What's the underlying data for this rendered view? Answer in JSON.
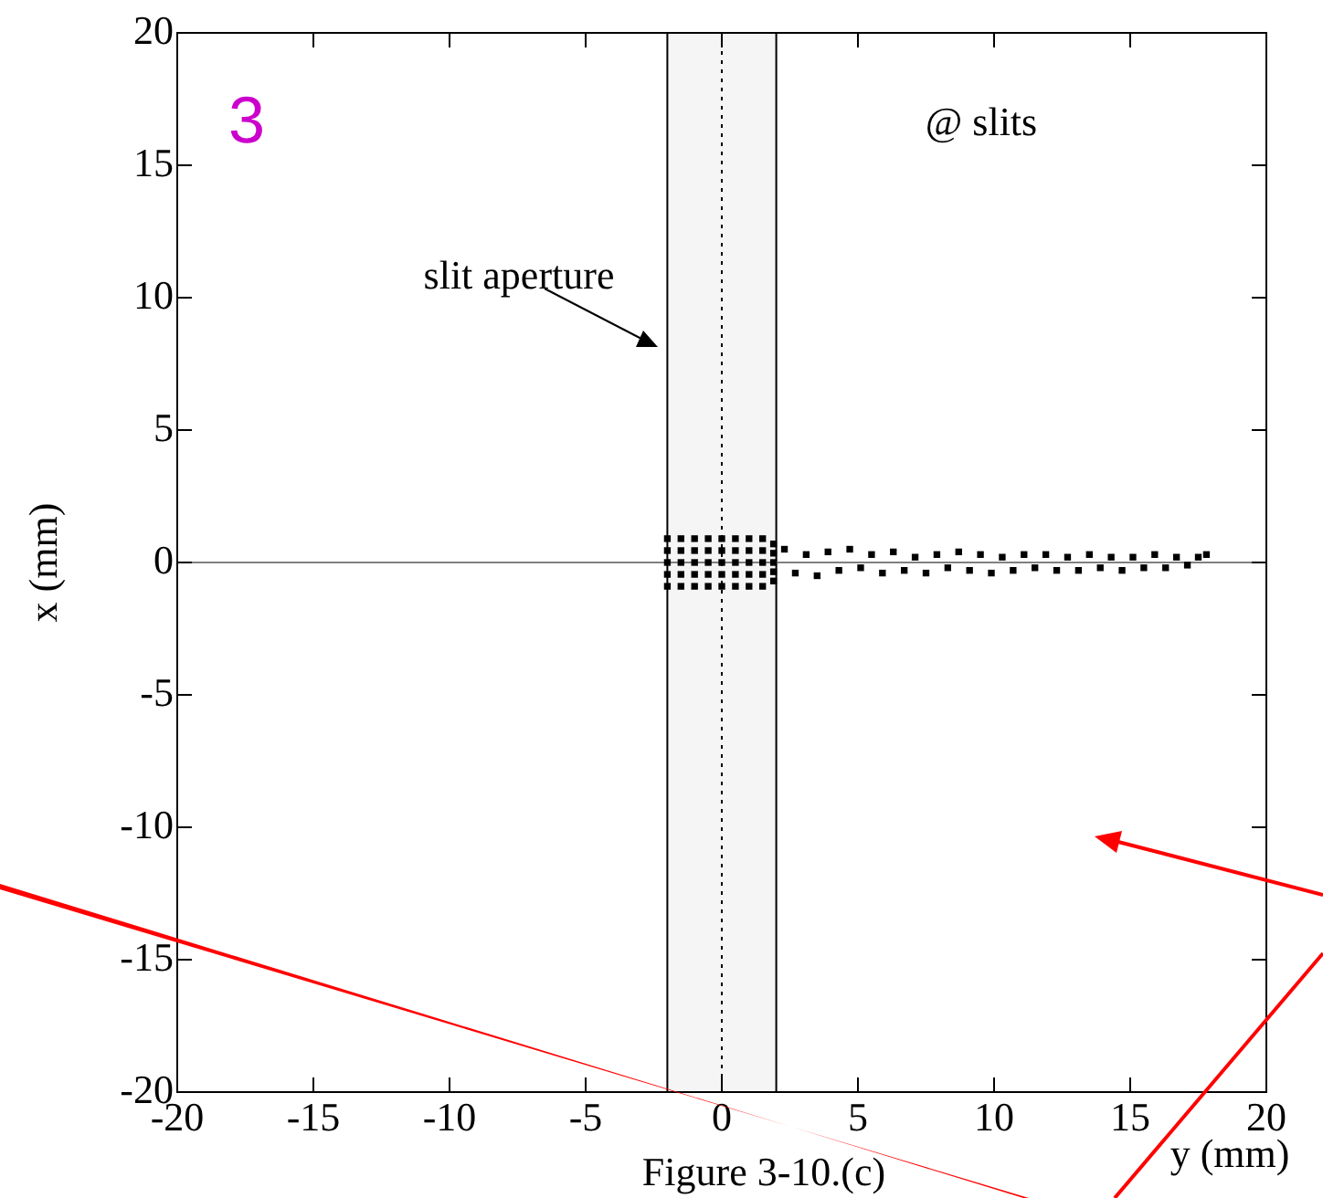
{
  "chart_data": {
    "type": "scatter",
    "xlabel": "y (mm)",
    "ylabel": "x (mm)",
    "annotations": [
      "3",
      "@ slits",
      "slit aperture",
      "Figure 3-10.(c)"
    ],
    "xlim": [
      -20,
      20
    ],
    "ylim": [
      -20,
      20
    ],
    "xticks": [
      -20,
      -15,
      -10,
      -5,
      0,
      5,
      10,
      15,
      20
    ],
    "yticks": [
      -20,
      -15,
      -10,
      -5,
      0,
      5,
      10,
      15,
      20
    ],
    "grid": false,
    "legend": false,
    "marker": "square",
    "bands": [
      {
        "axis": "x",
        "from": -2,
        "to": 2,
        "color": "#000000"
      }
    ],
    "ref_lines": [
      {
        "axis": "x",
        "value": 0,
        "line_style": "dotted",
        "color": "#000000"
      },
      {
        "axis": "y",
        "value": 0,
        "line_style": "solid",
        "color": "#808080"
      }
    ],
    "series": [
      {
        "color": "#000000",
        "x": [
          -2,
          -2,
          -2,
          -2,
          -2,
          -1.5,
          -1.5,
          -1.5,
          -1.5,
          -1.5,
          -1,
          -1,
          -1,
          -1,
          -1,
          -0.5,
          -0.5,
          -0.5,
          -0.5,
          -0.5,
          0,
          0,
          0,
          0,
          0,
          0.5,
          0.5,
          0.5,
          0.5,
          0.5,
          1,
          1,
          1,
          1,
          1,
          1.5,
          1.5,
          1.5,
          1.5,
          1.5,
          1.9,
          1.9,
          1.9,
          1.9,
          1.9,
          2.3,
          2.7,
          3.1,
          3.5,
          3.9,
          4.3,
          4.7,
          5.1,
          5.5,
          5.9,
          6.3,
          6.7,
          7.1,
          7.5,
          7.9,
          8.3,
          8.7,
          9.1,
          9.5,
          9.9,
          10.3,
          10.7,
          11.1,
          11.5,
          11.9,
          12.3,
          12.7,
          13.1,
          13.5,
          13.9,
          14.3,
          14.7,
          15.1,
          15.5,
          15.9,
          16.3,
          16.7,
          17.1,
          17.5,
          17.8
        ],
        "values": [
          -0.9,
          -0.45,
          0,
          0.45,
          0.9,
          -0.9,
          -0.45,
          0,
          0.45,
          0.9,
          -0.9,
          -0.45,
          0,
          0.45,
          0.9,
          -0.9,
          -0.45,
          0,
          0.45,
          0.9,
          -0.9,
          -0.45,
          0,
          0.45,
          0.9,
          -0.9,
          -0.45,
          0,
          0.45,
          0.9,
          -0.9,
          -0.45,
          0,
          0.45,
          0.9,
          -0.9,
          -0.45,
          0,
          0.45,
          0.9,
          -0.7,
          -0.35,
          0,
          0.35,
          0.7,
          0.5,
          -0.4,
          0.3,
          -0.5,
          0.4,
          -0.3,
          0.5,
          -0.2,
          0.3,
          -0.4,
          0.4,
          -0.3,
          0.2,
          -0.4,
          0.3,
          -0.2,
          0.4,
          -0.3,
          0.3,
          -0.4,
          0.2,
          -0.3,
          0.3,
          -0.2,
          0.3,
          -0.3,
          0.2,
          -0.3,
          0.3,
          -0.2,
          0.2,
          -0.3,
          0.2,
          -0.2,
          0.3,
          -0.2,
          0.2,
          -0.1,
          0.2,
          0.3
        ]
      }
    ]
  }
}
